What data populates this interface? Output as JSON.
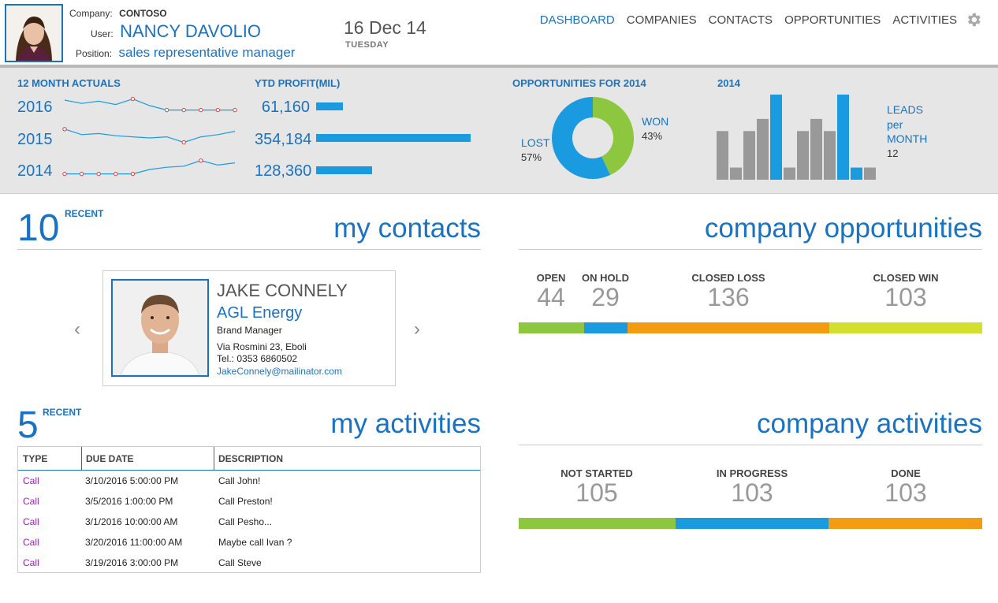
{
  "header": {
    "company_label": "Company:",
    "company": "CONTOSO",
    "user_label": "User:",
    "user": "NANCY DAVOLIO",
    "position_label": "Position:",
    "position": "sales representative manager",
    "date": "16 Dec 14",
    "day": "TUESDAY"
  },
  "nav": {
    "items": [
      "DASHBOARD",
      "COMPANIES",
      "CONTACTS",
      "OPPORTUNITIES",
      "ACTIVITIES"
    ],
    "active": "DASHBOARD",
    "settings_icon": "gear-icon"
  },
  "stats": {
    "actuals_title": "12 MONTH ACTUALS",
    "profit_title": "YTD PROFIT(MIL)",
    "opps_title": "OPPORTUNITIES FOR 2014",
    "leads_title": "2014",
    "years": [
      {
        "year": "2016",
        "profit": "61,160",
        "profit_value": 61160,
        "trend": [
          5,
          2,
          4,
          1,
          6,
          0,
          -4,
          -4,
          -4,
          -4,
          -4
        ]
      },
      {
        "year": "2015",
        "profit": "354,184",
        "profit_value": 354184,
        "trend": [
          8,
          3,
          4,
          2,
          1,
          0,
          1,
          -4,
          1,
          3,
          6
        ]
      },
      {
        "year": "2014",
        "profit": "128,360",
        "profit_value": 128360,
        "trend": [
          -4,
          -4,
          -4,
          -4,
          -4,
          0,
          2,
          3,
          8,
          4,
          6
        ]
      }
    ],
    "donut": {
      "lost_label": "LOST",
      "lost_pct": "57%",
      "lost_value": 57,
      "won_label": "WON",
      "won_pct": "43%",
      "won_value": 43,
      "lost_color": "#1a9be0",
      "won_color": "#8dc63f"
    },
    "leads": {
      "label_line1": "LEADS",
      "label_line2": "per",
      "label_line3": "MONTH",
      "value": "12",
      "bars": [
        6,
        1.5,
        6,
        7.5,
        10.5,
        1.5,
        6,
        7.5,
        6,
        10.5,
        1.5,
        1.5
      ],
      "highlight": [
        4,
        9,
        10
      ],
      "bar_color": "#999999",
      "highlight_color": "#1a9be0"
    }
  },
  "contacts": {
    "count": "10",
    "recent_label": "RECENT",
    "heading": "my contacts",
    "card": {
      "name": "JAKE CONNELY",
      "company": "AGL Energy",
      "title": "Brand Manager",
      "address": "Via Rosmini 23, Eboli",
      "phone": "Tel.: 0353 6860502",
      "email": "JakeConnely@mailinator.com"
    }
  },
  "activities": {
    "count": "5",
    "recent_label": "RECENT",
    "heading": "my activities",
    "columns": [
      "TYPE",
      "DUE DATE",
      "DESCRIPTION"
    ],
    "rows": [
      {
        "type": "Call",
        "due": "3/10/2016 5:00:00 PM",
        "desc": "Call John!"
      },
      {
        "type": "Call",
        "due": "3/5/2016 1:00:00 PM",
        "desc": "Call Preston!"
      },
      {
        "type": "Call",
        "due": "3/1/2016 10:00:00 AM",
        "desc": "Call Pesho..."
      },
      {
        "type": "Call",
        "due": "3/20/2016 11:00:00 AM",
        "desc": "Maybe call Ivan ?"
      },
      {
        "type": "Call",
        "due": "3/19/2016 3:00:00 PM",
        "desc": "Call Steve"
      }
    ]
  },
  "company_opportunities": {
    "heading": "company opportunities",
    "items": [
      {
        "label": "OPEN",
        "value": "44",
        "count": 44,
        "color": "#8dc63f"
      },
      {
        "label": "ON HOLD",
        "value": "29",
        "count": 29,
        "color": "#1a9be0"
      },
      {
        "label": "CLOSED LOSS",
        "value": "136",
        "count": 136,
        "color": "#f39c12"
      },
      {
        "label": "CLOSED WIN",
        "value": "103",
        "count": 103,
        "color": "#d4e02f"
      }
    ]
  },
  "company_activities": {
    "heading": "company activities",
    "items": [
      {
        "label": "NOT STARTED",
        "value": "105",
        "count": 105,
        "color": "#8dc63f"
      },
      {
        "label": "IN PROGRESS",
        "value": "103",
        "count": 103,
        "color": "#1a9be0"
      },
      {
        "label": "DONE",
        "value": "103",
        "count": 103,
        "color": "#f39c12"
      }
    ]
  }
}
